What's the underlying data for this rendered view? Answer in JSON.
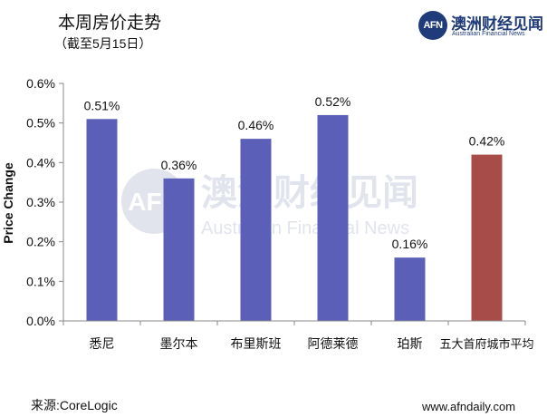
{
  "header": {
    "title": "本周房价走势",
    "subtitle": "（截至5月15日）"
  },
  "logo": {
    "mark": "AFN",
    "name_cn": "澳洲财经见闻",
    "name_en": "Australian Financial News"
  },
  "watermark": {
    "mark": "AFN",
    "name_cn": "澳洲财经见闻",
    "name_en": "Australian Financial News"
  },
  "footer": {
    "source": "来源:CoreLogic",
    "site": "www.afndaily.com"
  },
  "colors": {
    "bar_default": "#5b5fb8",
    "bar_highlight": "#a84c4a",
    "axis": "#888888",
    "brand": "#1f3b7a"
  },
  "chart_data": {
    "type": "bar",
    "title": "",
    "xlabel": "",
    "ylabel": "Price Change",
    "categories": [
      "悉尼",
      "墨尔本",
      "布里斯班",
      "阿德莱德",
      "珀斯",
      "五大首府城市平均"
    ],
    "values": [
      0.51,
      0.36,
      0.46,
      0.52,
      0.16,
      0.42
    ],
    "data_labels": [
      "0.51%",
      "0.36%",
      "0.46%",
      "0.52%",
      "0.16%",
      "0.42%"
    ],
    "highlight_index": 5,
    "ylim": [
      0,
      0.6
    ],
    "yticks": [
      0,
      0.1,
      0.2,
      0.3,
      0.4,
      0.5,
      0.6
    ],
    "ytick_labels": [
      "0.0%",
      "0.1%",
      "0.2%",
      "0.3%",
      "0.4%",
      "0.5%",
      "0.6%"
    ],
    "grid": false,
    "legend": "none"
  }
}
